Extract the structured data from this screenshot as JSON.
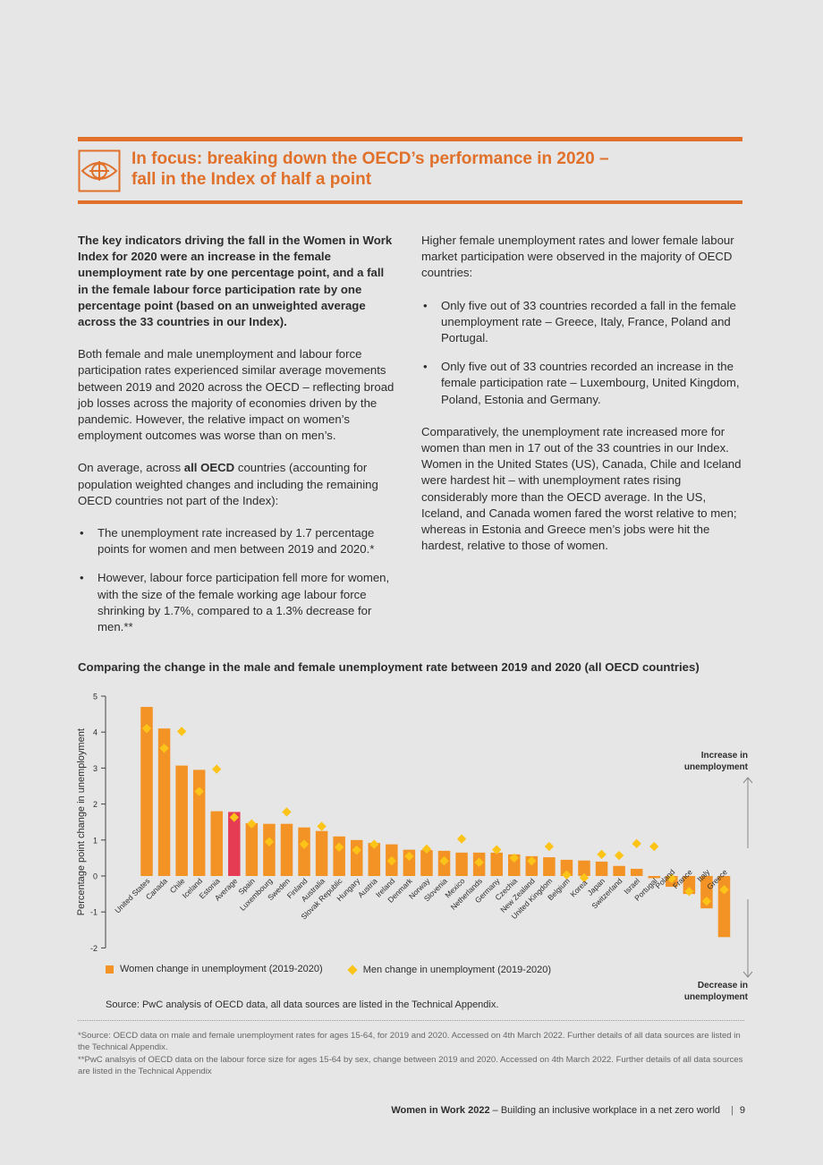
{
  "focus": {
    "title_line1": "In focus: breaking down the OECD’s performance in 2020 –",
    "title_line2": "fall in the Index of half a point"
  },
  "left_column": {
    "intro": "The key indicators driving the fall in the Women in Work Index for 2020 were an increase in the female unemployment rate by one percentage point, and a fall in the female labour force participation rate by one percentage point (based on an unweighted average across the 33 countries in our Index).",
    "para2": "Both female and male unemployment and labour force participation rates experienced similar average movements between 2019 and 2020 across the OECD – reflecting broad job losses across the majority of economies driven by the pandemic. However, the relative impact on women’s employment outcomes was worse than on men’s.",
    "para3_start": "On average, across ",
    "para3_bold": "all OECD",
    "para3_end": " countries (accounting for population weighted changes and including the remaining OECD countries not part of the Index):",
    "bullets": [
      "The unemployment rate increased by 1.7 percentage points for women and men between 2019 and 2020.*",
      "However, labour force participation fell more for women, with the size of the female working age labour force shrinking by 1.7%, compared to a 1.3% decrease for men.**"
    ]
  },
  "right_column": {
    "intro": "Higher female unemployment rates and lower female labour market participation were observed in the majority of OECD countries:",
    "bullets": [
      "Only five out of 33 countries recorded a fall in the female unemployment rate – Greece, Italy, France, Poland and Portugal.",
      "Only five out of 33 countries recorded an increase in the female participation rate – Luxembourg, United Kingdom, Poland, Estonia and Germany."
    ],
    "para_end": "Comparatively, the unemployment rate increased more for women than men in 17 out of the 33 countries in our Index. Women in the United States (US), Canada, Chile and Iceland were hardest hit – with unemployment rates rising considerably more than the OECD average. In the US, Iceland, and Canada women fared the worst relative to men; whereas in Estonia and Greece men’s jobs were hit the hardest, relative to those of women."
  },
  "chart_title": "Comparing the change in the male and female unemployment rate between 2019 and 2020 (all OECD countries)",
  "chart_data": {
    "type": "bar",
    "ylabel": "Percentage point change in unemployment",
    "ylim": [
      -2,
      5
    ],
    "yticks": [
      "-2",
      "-1",
      "0",
      "1",
      "2",
      "3",
      "4",
      "5"
    ],
    "categories": [
      "United States",
      "Canada",
      "Chile",
      "Iceland",
      "Estonia",
      "Average",
      "Spain",
      "Luxembourg",
      "Sweden",
      "Finland",
      "Australia",
      "Slovak Republic",
      "Hungary",
      "Austria",
      "Ireland",
      "Denmark",
      "Norway",
      "Slovenia",
      "Mexico",
      "Netherlands",
      "Germany",
      "Czechia",
      "New Zealand",
      "United Kingdom",
      "Belgium",
      "Korea",
      "Japan",
      "Switzerland",
      "Israel",
      "Portugal",
      "Poland",
      "France",
      "Italy",
      "Greece"
    ],
    "highlight_category": "Average",
    "series": [
      {
        "name": "Women change in unemployment (2019-2020)",
        "type": "bar",
        "color": "#f39325",
        "highlight_color": "#e63c53",
        "values": [
          4.7,
          4.1,
          3.07,
          2.95,
          1.8,
          1.78,
          1.47,
          1.45,
          1.45,
          1.35,
          1.25,
          1.1,
          1.0,
          0.92,
          0.88,
          0.73,
          0.72,
          0.7,
          0.65,
          0.65,
          0.65,
          0.6,
          0.55,
          0.52,
          0.45,
          0.43,
          0.4,
          0.28,
          0.2,
          -0.06,
          -0.3,
          -0.5,
          -0.9,
          -1.7
        ]
      },
      {
        "name": "Men change in unemployment (2019-2020)",
        "type": "marker",
        "color": "#fcc419",
        "values": [
          4.1,
          3.55,
          4.02,
          2.35,
          2.97,
          1.63,
          1.45,
          0.95,
          1.78,
          0.88,
          1.38,
          0.8,
          0.72,
          0.88,
          0.42,
          0.55,
          0.75,
          0.42,
          1.03,
          0.38,
          0.73,
          0.5,
          0.42,
          0.82,
          0.03,
          -0.05,
          0.6,
          0.57,
          0.9,
          0.82,
          -0.07,
          -0.43,
          -0.7,
          -0.38
        ]
      }
    ],
    "annotation_up": [
      "Increase in",
      "unemployment"
    ],
    "annotation_down": [
      "Decrease in",
      "unemployment"
    ]
  },
  "chart_source": "Source: PwC analysis of OECD data, all data sources are listed in the Technical Appendix.",
  "footnotes": [
    "*Source: OECD data on male and female unemployment rates for ages 15-64, for 2019 and 2020. Accessed on 4th March 2022. Further details of all data sources are listed in the Technical Appendix.",
    "**PwC analsyis of OECD data on the labour force size for ages 15-64 by sex, change between 2019 and 2020. Accessed on 4th March 2022. Further details of all data sources are listed in the Technical Appendix"
  ],
  "footer": {
    "report_bold": "Women in Work 2022",
    "report_rest": " – Building an inclusive workplace in a net zero world",
    "page_number": "9"
  },
  "colors": {
    "accent": "#e0702a",
    "bar": "#f39325",
    "bar_highlight": "#e63c53",
    "marker": "#fcc419",
    "background": "#e6e6e6"
  },
  "icons": {
    "focus": "eye-target-icon"
  }
}
